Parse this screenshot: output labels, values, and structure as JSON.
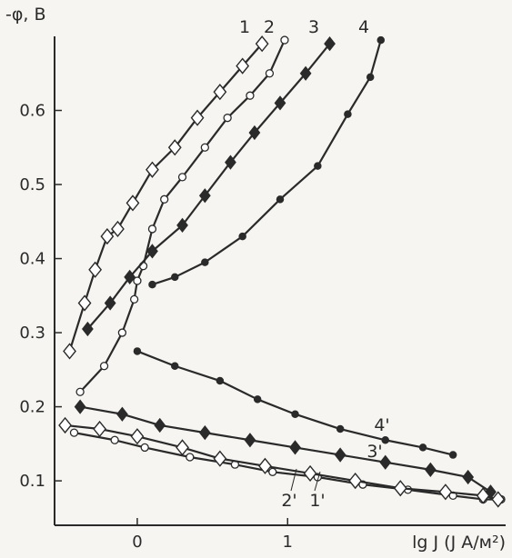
{
  "chart_data": {
    "type": "line",
    "ylabel": "-φ, В",
    "xlabel": "lg J (J  А/м²)",
    "xlim": [
      -0.55,
      2.45
    ],
    "ylim": [
      0.04,
      0.7
    ],
    "xticks": [
      {
        "value": 0,
        "label": "0"
      },
      {
        "value": 1,
        "label": "1"
      }
    ],
    "yticks": [
      {
        "value": 0.1,
        "label": "0.1"
      },
      {
        "value": 0.2,
        "label": "0.2"
      },
      {
        "value": 0.3,
        "label": "0.3"
      },
      {
        "value": 0.4,
        "label": "0.4"
      },
      {
        "value": 0.5,
        "label": "0.5"
      },
      {
        "value": 0.6,
        "label": "0.6"
      }
    ],
    "grid": false,
    "series": [
      {
        "name": "1",
        "marker": "diamond",
        "x": [
          -0.45,
          -0.35,
          -0.28,
          -0.2,
          -0.13,
          -0.03,
          0.1,
          0.25,
          0.4,
          0.55,
          0.7,
          0.83
        ],
        "y": [
          0.275,
          0.34,
          0.385,
          0.43,
          0.44,
          0.475,
          0.52,
          0.55,
          0.59,
          0.625,
          0.66,
          0.69
        ]
      },
      {
        "name": "2",
        "marker": "open-circle",
        "x": [
          -0.38,
          -0.22,
          -0.1,
          -0.02,
          0.0,
          0.04,
          0.1,
          0.18,
          0.3,
          0.45,
          0.6,
          0.75,
          0.88,
          0.98
        ],
        "y": [
          0.22,
          0.255,
          0.3,
          0.345,
          0.37,
          0.39,
          0.44,
          0.48,
          0.51,
          0.55,
          0.59,
          0.62,
          0.65,
          0.695
        ]
      },
      {
        "name": "3",
        "marker": "filled-diamond",
        "x": [
          -0.33,
          -0.18,
          -0.05,
          0.1,
          0.3,
          0.45,
          0.62,
          0.78,
          0.95,
          1.12,
          1.28
        ],
        "y": [
          0.305,
          0.34,
          0.375,
          0.41,
          0.445,
          0.485,
          0.53,
          0.57,
          0.61,
          0.65,
          0.69
        ]
      },
      {
        "name": "4",
        "marker": "filled-circle",
        "x": [
          0.1,
          0.25,
          0.45,
          0.7,
          0.95,
          1.2,
          1.4,
          1.55,
          1.62
        ],
        "y": [
          0.365,
          0.375,
          0.395,
          0.43,
          0.48,
          0.525,
          0.595,
          0.645,
          0.695
        ]
      },
      {
        "name": "4'",
        "marker": "filled-circle",
        "x": [
          0.0,
          0.25,
          0.55,
          0.8,
          1.05,
          1.35,
          1.65,
          1.9,
          2.1
        ],
        "y": [
          0.275,
          0.255,
          0.235,
          0.21,
          0.19,
          0.17,
          0.155,
          0.145,
          0.135
        ]
      },
      {
        "name": "3'",
        "marker": "filled-diamond",
        "x": [
          -0.38,
          -0.1,
          0.15,
          0.45,
          0.75,
          1.05,
          1.35,
          1.65,
          1.95,
          2.2,
          2.35
        ],
        "y": [
          0.2,
          0.19,
          0.175,
          0.165,
          0.155,
          0.145,
          0.135,
          0.125,
          0.115,
          0.105,
          0.085
        ]
      },
      {
        "name": "2'",
        "marker": "open-circle",
        "x": [
          -0.42,
          -0.15,
          0.05,
          0.35,
          0.65,
          0.9,
          1.2,
          1.5,
          1.8,
          2.1,
          2.3,
          2.42
        ],
        "y": [
          0.165,
          0.155,
          0.145,
          0.132,
          0.122,
          0.112,
          0.105,
          0.095,
          0.088,
          0.08,
          0.075,
          0.075
        ]
      },
      {
        "name": "1'",
        "marker": "diamond",
        "x": [
          -0.48,
          -0.25,
          0.0,
          0.3,
          0.55,
          0.85,
          1.15,
          1.45,
          1.75,
          2.05,
          2.3,
          2.4
        ],
        "y": [
          0.175,
          0.17,
          0.16,
          0.145,
          0.13,
          0.12,
          0.11,
          0.1,
          0.09,
          0.085,
          0.08,
          0.075
        ]
      }
    ]
  }
}
